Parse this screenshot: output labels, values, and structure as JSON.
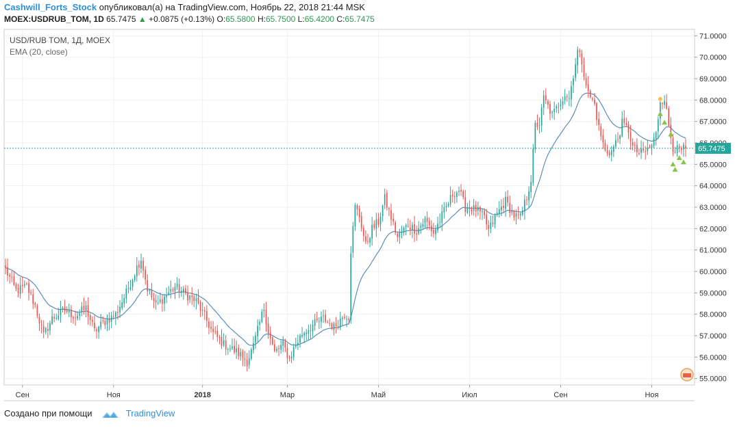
{
  "header": {
    "author": "Cashwill_Forts_Stock",
    "published": "опубликовал(а) на TradingView.com, Ноябрь 22, 2018 21:44 MSK",
    "symbol": "MOEX:USDRUB_TOM, 1D",
    "last": "65.7475",
    "change": "+0.0875 (+0.13%)",
    "o_label": "O:",
    "o": "65.5800",
    "h_label": "H:",
    "h": "65.7500",
    "l_label": "L:",
    "l": "65.4200",
    "c_label": "C:",
    "c": "65.7475"
  },
  "legend": {
    "title": "USD/RUB TOM, 1Д, MOEX",
    "indicator": "EMA (20, close)"
  },
  "footer": {
    "created": "Создано при помощи",
    "brand": "TradingView"
  },
  "colors": {
    "up": "#26a69a",
    "down": "#ef5350",
    "ema": "#5b8db8",
    "price_line": "#26a69a",
    "triangle": "#8bc34a",
    "grid": "#eef0f3"
  },
  "chart_data": {
    "type": "candlestick",
    "last_price_label": "65.7475",
    "last_price": 65.7475,
    "ylim": [
      54.7,
      71.3
    ],
    "y_ticks": [
      "55.0000",
      "56.0000",
      "57.0000",
      "58.0000",
      "59.0000",
      "60.0000",
      "61.0000",
      "62.0000",
      "63.0000",
      "64.0000",
      "65.0000",
      "66.0000",
      "67.0000",
      "68.0000",
      "69.0000",
      "70.0000",
      "71.0000"
    ],
    "x_ticks": [
      {
        "label": "Сен",
        "idx": 8
      },
      {
        "label": "Ноя",
        "idx": 51
      },
      {
        "label": "2018",
        "idx": 93
      },
      {
        "label": "Мар",
        "idx": 133
      },
      {
        "label": "Май",
        "idx": 176
      },
      {
        "label": "Июл",
        "idx": 219
      },
      {
        "label": "Сен",
        "idx": 262
      },
      {
        "label": "Ноя",
        "idx": 305
      }
    ],
    "close_anchors": [
      [
        0,
        60.1
      ],
      [
        5,
        59.1
      ],
      [
        10,
        59.3
      ],
      [
        14,
        58.4
      ],
      [
        18,
        57.0
      ],
      [
        22,
        57.8
      ],
      [
        28,
        58.2
      ],
      [
        33,
        57.9
      ],
      [
        38,
        58.3
      ],
      [
        42,
        57.2
      ],
      [
        46,
        57.6
      ],
      [
        52,
        58.0
      ],
      [
        57,
        59.0
      ],
      [
        62,
        60.2
      ],
      [
        64,
        60.6
      ],
      [
        67,
        59.2
      ],
      [
        71,
        58.4
      ],
      [
        75,
        58.8
      ],
      [
        80,
        59.3
      ],
      [
        84,
        59.0
      ],
      [
        90,
        58.6
      ],
      [
        94,
        57.9
      ],
      [
        98,
        57.1
      ],
      [
        103,
        56.6
      ],
      [
        108,
        56.3
      ],
      [
        111,
        56.1
      ],
      [
        114,
        55.8
      ],
      [
        117,
        56.5
      ],
      [
        120,
        57.6
      ],
      [
        122,
        58.3
      ],
      [
        124,
        57.2
      ],
      [
        127,
        56.2
      ],
      [
        131,
        56.6
      ],
      [
        134,
        55.9
      ],
      [
        136,
        56.4
      ],
      [
        140,
        57.1
      ],
      [
        145,
        57.5
      ],
      [
        150,
        57.8
      ],
      [
        155,
        57.4
      ],
      [
        160,
        58.0
      ],
      [
        162,
        57.9
      ],
      [
        163,
        61.0
      ],
      [
        165,
        63.0
      ],
      [
        167,
        62.6
      ],
      [
        170,
        61.2
      ],
      [
        173,
        62.0
      ],
      [
        176,
        62.3
      ],
      [
        179,
        63.4
      ],
      [
        182,
        62.5
      ],
      [
        185,
        61.6
      ],
      [
        190,
        62.2
      ],
      [
        194,
        61.9
      ],
      [
        198,
        62.4
      ],
      [
        202,
        61.8
      ],
      [
        207,
        62.8
      ],
      [
        211,
        63.6
      ],
      [
        214,
        63.8
      ],
      [
        217,
        63.0
      ],
      [
        222,
        62.9
      ],
      [
        226,
        62.5
      ],
      [
        228,
        61.9
      ],
      [
        232,
        62.7
      ],
      [
        236,
        63.3
      ],
      [
        240,
        62.6
      ],
      [
        243,
        62.5
      ],
      [
        246,
        63.5
      ],
      [
        248,
        64.3
      ],
      [
        250,
        66.8
      ],
      [
        252,
        66.9
      ],
      [
        254,
        68.1
      ],
      [
        258,
        67.3
      ],
      [
        260,
        67.6
      ],
      [
        264,
        68.3
      ],
      [
        266,
        68.1
      ],
      [
        268,
        69.2
      ],
      [
        270,
        70.3
      ],
      [
        272,
        69.8
      ],
      [
        275,
        68.3
      ],
      [
        278,
        67.8
      ],
      [
        280,
        66.7
      ],
      [
        283,
        65.6
      ],
      [
        286,
        65.6
      ],
      [
        289,
        66.2
      ],
      [
        291,
        66.9
      ],
      [
        294,
        66.6
      ],
      [
        296,
        65.8
      ],
      [
        299,
        65.5
      ],
      [
        302,
        65.6
      ],
      [
        305,
        65.9
      ],
      [
        307,
        66.4
      ],
      [
        309,
        68.0
      ],
      [
        311,
        68.1
      ],
      [
        313,
        66.8
      ],
      [
        315,
        65.8
      ],
      [
        318,
        65.6
      ],
      [
        321,
        65.75
      ]
    ],
    "triangles": [
      {
        "idx": 309,
        "price": 67.35
      },
      {
        "idx": 311,
        "price": 66.95
      },
      {
        "idx": 314,
        "price": 66.4
      },
      {
        "idx": 315,
        "price": 65.0
      },
      {
        "idx": 316,
        "price": 64.75
      },
      {
        "idx": 318,
        "price": 65.3
      },
      {
        "idx": 320,
        "price": 65.1
      }
    ]
  }
}
